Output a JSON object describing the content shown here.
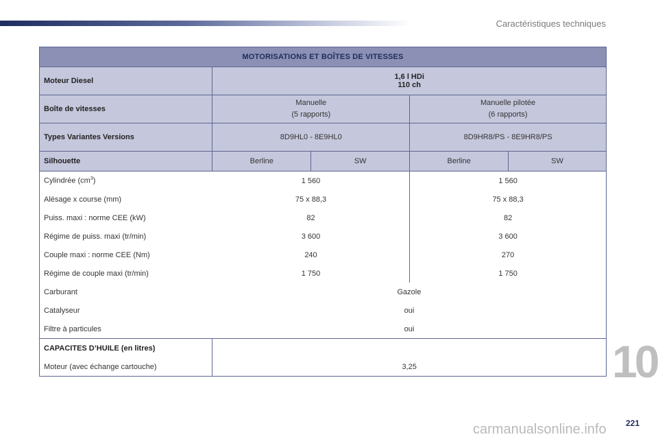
{
  "header": {
    "title": "Caractéristiques techniques"
  },
  "chapter": "10",
  "page_number": "221",
  "watermark": "carmanualsonline.info",
  "table": {
    "title": "MOTORISATIONS ET BOÎTES DE VITESSES",
    "engine_label": "Moteur Diesel",
    "engine_line1": "1,6 l HDi",
    "engine_line2": "110 ch",
    "gearbox_label": "Boîte de vitesses",
    "gearbox_manual_line1": "Manuelle",
    "gearbox_manual_line2": "(5 rapports)",
    "gearbox_piloted_line1": "Manuelle pilotée",
    "gearbox_piloted_line2": "(6 rapports)",
    "types_label": "Types Variantes Versions",
    "types_manual": "8D9HL0 - 8E9HL0",
    "types_piloted": "8D9HR8/PS - 8E9HR8/PS",
    "silhouette_label": "Silhouette",
    "silhouettes": [
      "Berline",
      "SW",
      "Berline",
      "SW"
    ],
    "rows": [
      {
        "label": "Cylindrée (cm",
        "sup": "3",
        "label_end": ")",
        "manual": "1 560",
        "piloted": "1 560"
      },
      {
        "label": "Alésage x course (mm)",
        "manual": "75 x 88,3",
        "piloted": "75 x 88,3"
      },
      {
        "label": "Puiss. maxi : norme CEE (kW)",
        "manual": "82",
        "piloted": "82"
      },
      {
        "label": "Régime de puiss. maxi (tr/min)",
        "manual": "3 600",
        "piloted": "3 600"
      },
      {
        "label": "Couple maxi : norme CEE (Nm)",
        "manual": "240",
        "piloted": "270"
      },
      {
        "label": "Régime de couple maxi (tr/min)",
        "manual": "1 750",
        "piloted": "1 750"
      }
    ],
    "fuel_label": "Carburant",
    "fuel_value": "Gazole",
    "catalyst_label": "Catalyseur",
    "catalyst_value": "oui",
    "filter_label": "Filtre à particules",
    "filter_value": "oui",
    "oil_title": "CAPACITES D’HUILE (en litres)",
    "oil_label": "Moteur (avec échange cartouche)",
    "oil_value": "3,25"
  }
}
